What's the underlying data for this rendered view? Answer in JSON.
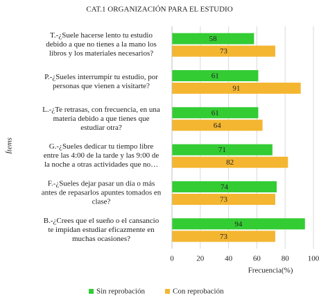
{
  "chart_data": {
    "type": "hbar",
    "title": "CAT.1 ORGANIZACIÓN PARA EL ESTUDIO",
    "xlabel": "Frecuencia(%)",
    "ylabel": "Ítems",
    "categories": [
      [
        "T.-¿Suele hacerse lento tu estudio",
        "debido a que no tienes a la mano los",
        "libros y los materiales necesarios?"
      ],
      [
        "P.-¿Sueles interrumpir tu estudio, por",
        "personas que vienen a visitarte?"
      ],
      [
        "L.-¿Te retrasas, con frecuencia, en una",
        "materia debido a que tienes que",
        "estudiar otra?"
      ],
      [
        "G.-¿Sueles dedicar tu tiempo libre",
        "entre las 4:00 de la tarde y las 9:00 de",
        "la noche a otras actividades que no…"
      ],
      [
        "F.-¿Sueles dejar pasar un día o más",
        "antes de repasarlos apuntes tomados en",
        "clase?"
      ],
      [
        "B.-¿Crees que el sueño o el cansancio",
        "te impidan estudiar eficazmente en",
        "muchas ocasiones?"
      ]
    ],
    "series": [
      {
        "name": "Sin reprobación",
        "color": "#33cc33",
        "values": [
          58,
          61,
          61,
          71,
          74,
          94
        ]
      },
      {
        "name": "Con reprobación",
        "color": "#f4b631",
        "values": [
          73,
          91,
          64,
          82,
          73,
          73
        ]
      }
    ],
    "xlim": [
      0,
      100
    ],
    "xticks": [
      0,
      20,
      40,
      60,
      80,
      100
    ],
    "grid": true,
    "legend": "bottom"
  }
}
